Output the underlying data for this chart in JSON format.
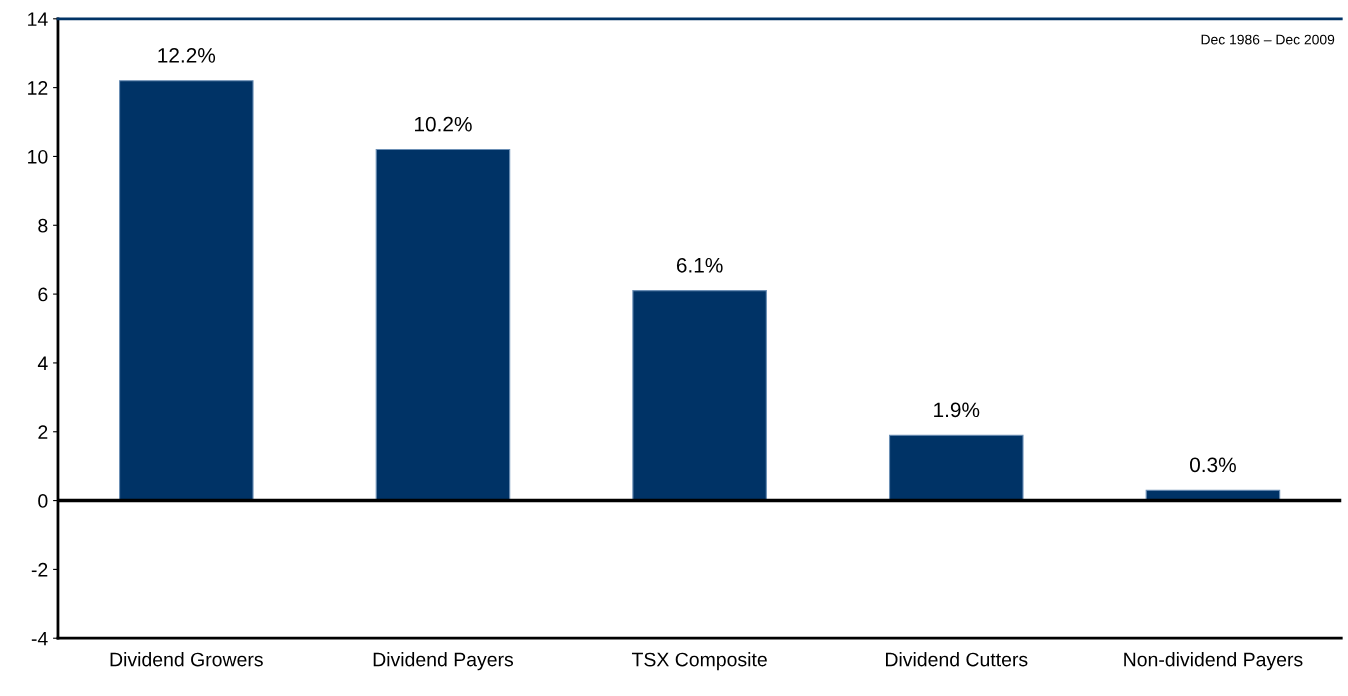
{
  "chart_data": {
    "type": "bar",
    "categories": [
      "Dividend Growers",
      "Dividend Payers",
      "TSX Composite",
      "Dividend Cutters",
      "Non-dividend Payers"
    ],
    "values": [
      12.2,
      10.2,
      6.1,
      1.9,
      0.3
    ],
    "value_labels": [
      "12.2%",
      "10.2%",
      "6.1%",
      "1.9%",
      "0.3%"
    ],
    "color": "#003366",
    "ylim": [
      -4,
      14
    ],
    "yticks": [
      -4,
      -2,
      0,
      2,
      4,
      6,
      8,
      10,
      12,
      14
    ],
    "ref_lines": [
      {
        "axis": "y",
        "value": 0,
        "color": "#000000"
      }
    ],
    "annotations": [
      "Dec 1986 – Dec 2009"
    ],
    "grid": false,
    "legend": false
  }
}
